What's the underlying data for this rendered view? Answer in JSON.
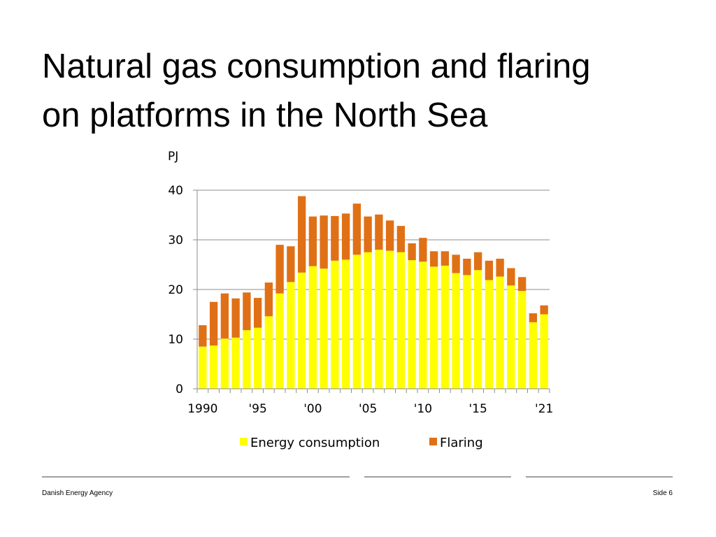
{
  "slide": {
    "title_line1": "Natural gas consumption and flaring",
    "title_line2": "on platforms in the North Sea"
  },
  "footer": {
    "organization": "Danish Energy Agency",
    "page_label": "Side 6"
  },
  "colors": {
    "energy_consumption": "#ffff00",
    "flaring": "#e07016",
    "gridline": "#8c8c8c",
    "axis": "#8c8c8c"
  },
  "chart_data": {
    "type": "bar",
    "stacked": true,
    "title": "",
    "ylabel": "PJ",
    "xlabel": "",
    "ylim": [
      0,
      40
    ],
    "yticks": [
      0,
      10,
      20,
      30,
      40
    ],
    "grid": true,
    "legend_position": "bottom",
    "categories": [
      1990,
      1991,
      1992,
      1993,
      1994,
      1995,
      1996,
      1997,
      1998,
      1999,
      2000,
      2001,
      2002,
      2003,
      2004,
      2005,
      2006,
      2007,
      2008,
      2009,
      2010,
      2011,
      2012,
      2013,
      2014,
      2015,
      2016,
      2017,
      2018,
      2019,
      2020,
      2021
    ],
    "x_tick_labels": [
      {
        "category": 1990,
        "label": "1990"
      },
      {
        "category": 1995,
        "label": "'95"
      },
      {
        "category": 2000,
        "label": "'00"
      },
      {
        "category": 2005,
        "label": "'05"
      },
      {
        "category": 2010,
        "label": "'10"
      },
      {
        "category": 2015,
        "label": "'15"
      },
      {
        "category": 2021,
        "label": "'21"
      }
    ],
    "series": [
      {
        "name": "Energy consumption",
        "values": [
          8.5,
          8.7,
          10.1,
          10.3,
          11.8,
          12.3,
          14.6,
          19.2,
          21.5,
          23.4,
          24.7,
          24.2,
          25.8,
          26.0,
          27.0,
          27.5,
          28.0,
          27.8,
          27.5,
          25.9,
          25.6,
          24.6,
          24.8,
          23.3,
          22.9,
          23.9,
          21.9,
          22.6,
          20.8,
          19.7,
          13.4,
          15.0
        ]
      },
      {
        "name": "Flaring",
        "values": [
          4.3,
          8.8,
          9.1,
          7.9,
          7.6,
          6.0,
          6.8,
          9.8,
          7.2,
          15.4,
          10.0,
          10.7,
          9.0,
          9.3,
          10.3,
          7.2,
          7.1,
          6.1,
          5.3,
          3.4,
          4.8,
          3.1,
          2.9,
          3.7,
          3.3,
          3.6,
          3.9,
          3.6,
          3.5,
          2.8,
          1.8,
          1.8
        ]
      }
    ]
  }
}
